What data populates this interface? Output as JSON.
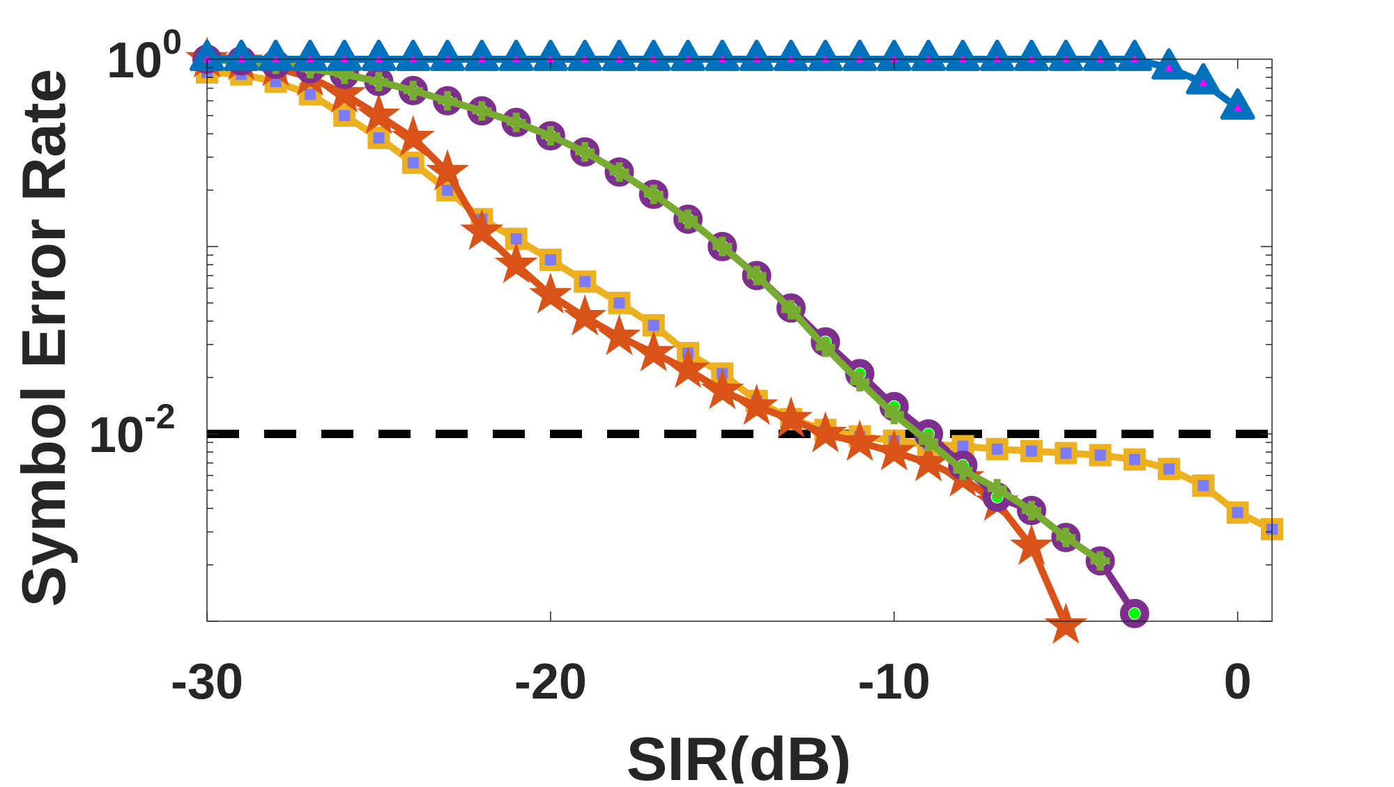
{
  "chart_data": {
    "type": "line",
    "title": "",
    "xlabel": "SIR(dB)",
    "ylabel": "Symbol Error Rate",
    "xlim": [
      -30,
      1
    ],
    "ylim": [
      0.001,
      1
    ],
    "y_scale": "log",
    "grid": false,
    "x_ticks": [
      {
        "value": -30,
        "label": "-30"
      },
      {
        "value": -20,
        "label": "-20"
      },
      {
        "value": -10,
        "label": "-10"
      },
      {
        "value": 0,
        "label": "0"
      }
    ],
    "y_ticks": [
      {
        "value": 1,
        "base": "10",
        "exp": "0"
      },
      {
        "value": 0.01,
        "base": "10",
        "exp": "-2"
      }
    ],
    "reference_lines": [
      {
        "y": 0.01,
        "style": "dashed",
        "color": "#000000"
      }
    ],
    "series": [
      {
        "color": "#0072BD",
        "marker": "triangle",
        "marker_fill": "#FF00FF",
        "x": [
          -30,
          -29,
          -28,
          -27,
          -26,
          -25,
          -24,
          -23,
          -22,
          -21,
          -20,
          -19,
          -18,
          -17,
          -16,
          -15,
          -14,
          -13,
          -12,
          -11,
          -10,
          -9,
          -8,
          -7,
          -6,
          -5,
          -4,
          -3,
          -2,
          -1,
          0
        ],
        "y": [
          1,
          1,
          1,
          1,
          1,
          1,
          1,
          1,
          1,
          1,
          1,
          1,
          1,
          1,
          1,
          1,
          1,
          1,
          1,
          1,
          1,
          1,
          1,
          1,
          1,
          1,
          1,
          1,
          0.9,
          0.75,
          0.55
        ]
      },
      {
        "color": "#7E2F8E",
        "marker": "circle",
        "marker_fill": "#00FF00",
        "x": [
          -30,
          -29,
          -28,
          -27,
          -26,
          -25,
          -24,
          -23,
          -22,
          -21,
          -20,
          -19,
          -18,
          -17,
          -16,
          -15,
          -14,
          -13,
          -12,
          -11,
          -10,
          -9,
          -8,
          -7,
          -6,
          -5,
          -4,
          -3
        ],
        "y": [
          1,
          0.98,
          0.94,
          0.89,
          0.83,
          0.76,
          0.68,
          0.6,
          0.53,
          0.46,
          0.39,
          0.32,
          0.25,
          0.19,
          0.14,
          0.1,
          0.07,
          0.047,
          0.031,
          0.021,
          0.014,
          0.01,
          0.0068,
          0.0046,
          0.0039,
          0.0028,
          0.0021,
          0.0011
        ]
      },
      {
        "color": "#77AC30",
        "marker": "plus",
        "marker_fill": "#FF00FF",
        "x": [
          -30,
          -29,
          -28,
          -27,
          -26,
          -25,
          -24,
          -23,
          -22,
          -21,
          -20,
          -19,
          -18,
          -17,
          -16,
          -15,
          -14,
          -13,
          -12,
          -11,
          -10,
          -9,
          -8,
          -7,
          -6,
          -5,
          -4
        ],
        "y": [
          1,
          0.98,
          0.94,
          0.89,
          0.83,
          0.76,
          0.68,
          0.6,
          0.53,
          0.46,
          0.39,
          0.32,
          0.25,
          0.19,
          0.14,
          0.1,
          0.07,
          0.046,
          0.029,
          0.019,
          0.0127,
          0.0091,
          0.0064,
          0.0051,
          0.0039,
          0.0028,
          0.0021
        ]
      },
      {
        "color": "#D95319",
        "marker": "star",
        "marker_fill": "#D95319",
        "x": [
          -30,
          -29,
          -28,
          -27,
          -26,
          -25,
          -24,
          -23,
          -22,
          -21,
          -20,
          -19,
          -18,
          -17,
          -16,
          -15,
          -14,
          -13,
          -12,
          -11,
          -10,
          -9,
          -8,
          -7,
          -6,
          -5
        ],
        "y": [
          1,
          0.97,
          0.9,
          0.8,
          0.65,
          0.5,
          0.38,
          0.25,
          0.12,
          0.08,
          0.055,
          0.042,
          0.033,
          0.027,
          0.022,
          0.017,
          0.014,
          0.012,
          0.01,
          0.009,
          0.008,
          0.007,
          0.0058,
          0.0043,
          0.0025,
          0.00095
        ]
      },
      {
        "color": "#EDB120",
        "marker": "square",
        "marker_fill": "#7B7BF7",
        "x": [
          -30,
          -29,
          -28,
          -27,
          -26,
          -25,
          -24,
          -23,
          -22,
          -21,
          -20,
          -19,
          -18,
          -17,
          -16,
          -15,
          -14,
          -13,
          -12,
          -11,
          -10,
          -9,
          -8,
          -7,
          -6,
          -5,
          -4,
          -3,
          -2,
          -1,
          0,
          1
        ],
        "y": [
          0.85,
          0.83,
          0.76,
          0.65,
          0.5,
          0.38,
          0.28,
          0.2,
          0.14,
          0.11,
          0.085,
          0.065,
          0.05,
          0.038,
          0.027,
          0.021,
          0.015,
          0.012,
          0.0105,
          0.0097,
          0.0092,
          0.0088,
          0.0086,
          0.0083,
          0.0081,
          0.0079,
          0.0077,
          0.0073,
          0.0065,
          0.0053,
          0.0038,
          0.0031
        ]
      }
    ]
  }
}
